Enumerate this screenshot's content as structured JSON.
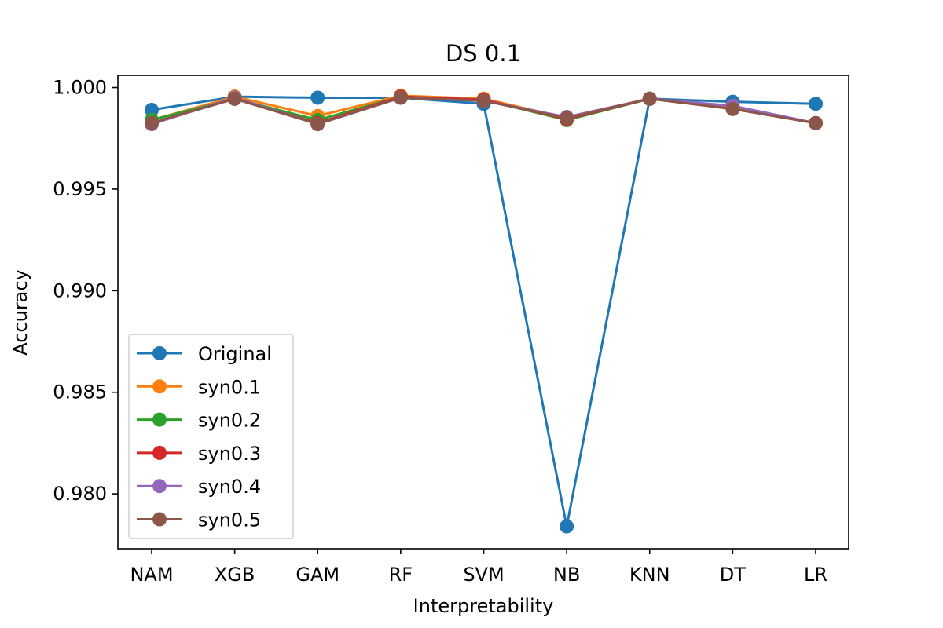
{
  "chart_data": {
    "type": "line",
    "title": "DS 0.1",
    "xlabel": "Interpretability",
    "ylabel": "Accuracy",
    "categories": [
      "NAM",
      "XGB",
      "GAM",
      "RF",
      "SVM",
      "NB",
      "KNN",
      "DT",
      "LR"
    ],
    "ylim": [
      0.9773,
      1.0006
    ],
    "yticks": [
      0.98,
      0.985,
      0.99,
      0.995,
      1.0
    ],
    "ytick_labels": [
      "0.980",
      "0.985",
      "0.990",
      "0.995",
      "1.000"
    ],
    "grid": false,
    "legend_position": "lower-left",
    "series": [
      {
        "name": "Original",
        "color": "#1f77b4",
        "values": [
          0.9989,
          0.99955,
          0.9995,
          0.9995,
          0.9992,
          0.9784,
          0.99945,
          0.9993,
          0.9992
        ]
      },
      {
        "name": "syn0.1",
        "color": "#ff7f0e",
        "values": [
          0.9984,
          0.99955,
          0.9986,
          0.9996,
          0.99945,
          0.9985,
          0.99945,
          0.999,
          0.99825
        ]
      },
      {
        "name": "syn0.2",
        "color": "#2ca02c",
        "values": [
          0.9984,
          0.99945,
          0.9984,
          0.99955,
          0.9994,
          0.9984,
          0.99945,
          0.99895,
          0.99825
        ]
      },
      {
        "name": "syn0.3",
        "color": "#d62728",
        "values": [
          0.99825,
          0.99945,
          0.99825,
          0.99955,
          0.9994,
          0.99845,
          0.99945,
          0.99895,
          0.99825
        ]
      },
      {
        "name": "syn0.4",
        "color": "#9467bd",
        "values": [
          0.9982,
          0.9995,
          0.9982,
          0.9995,
          0.99935,
          0.99855,
          0.99945,
          0.9991,
          0.99825
        ]
      },
      {
        "name": "syn0.5",
        "color": "#8c564b",
        "values": [
          0.99825,
          0.99945,
          0.9982,
          0.9995,
          0.99935,
          0.9985,
          0.99945,
          0.99895,
          0.99825
        ]
      }
    ]
  }
}
